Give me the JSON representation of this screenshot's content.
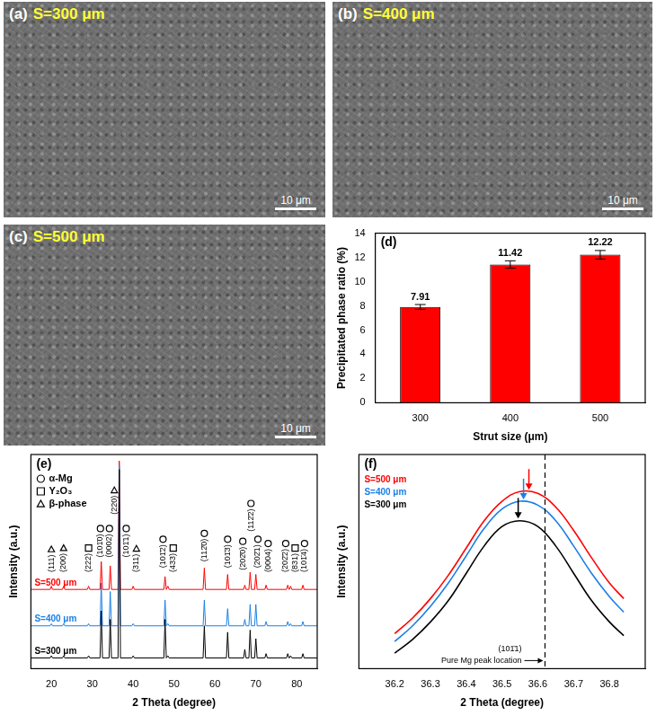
{
  "images": [
    {
      "label": "(a)",
      "title": "S=300 μm",
      "scale_bar": "10 μm"
    },
    {
      "label": "(b)",
      "title": "S=400 μm",
      "scale_bar": "10 μm"
    },
    {
      "label": "(c)",
      "title": "S=500 μm",
      "scale_bar": "10 μm"
    }
  ],
  "chart_data": [
    {
      "type": "bar",
      "label": "(d)",
      "categories": [
        "300",
        "400",
        "500"
      ],
      "values": [
        7.91,
        11.42,
        12.22
      ],
      "errors": [
        0.2,
        0.3,
        0.35
      ],
      "color": "#ff0000",
      "x_label": "Strut size (μm)",
      "y_label": "Precipitated phase ratio (%)",
      "ylim": [
        0,
        14
      ],
      "yticks": [
        0,
        2,
        4,
        6,
        8,
        10,
        12,
        14
      ],
      "grid": false,
      "data_labels": true
    },
    {
      "type": "line",
      "label": "(e)",
      "x": [
        15,
        19.7,
        20,
        20.3,
        22.7,
        23,
        23.3,
        28.8,
        29.1,
        29.4,
        31.9,
        32.2,
        32.5,
        34.1,
        34.4,
        34.7,
        36.3,
        36.6,
        36.9,
        39.7,
        40,
        40.3,
        47.5,
        47.8,
        48.1,
        48.2,
        48.5,
        48.8,
        57.1,
        57.4,
        57.7,
        62.8,
        63.1,
        63.4,
        67,
        67.3,
        67.6,
        68.3,
        68.6,
        68.9,
        69.7,
        70,
        70.3,
        72.2,
        72.5,
        72.8,
        77.5,
        77.8,
        78.1,
        78.2,
        78.5,
        78.8,
        81.2,
        81.5,
        81.8,
        85
      ],
      "series": [
        {
          "name": "S=300 μm",
          "color": "#000000",
          "values": [
            5,
            5,
            6,
            5,
            5,
            6,
            5,
            5,
            6,
            5,
            5,
            27,
            5,
            5,
            23,
            5,
            5,
            93,
            5,
            5,
            6,
            5,
            5,
            23,
            5,
            5,
            6,
            5,
            5,
            20,
            5,
            5,
            17,
            5,
            5,
            9,
            5,
            5,
            18,
            5,
            5,
            14,
            5,
            5,
            7,
            5,
            5,
            7,
            5,
            5,
            6,
            5,
            5,
            7,
            5,
            5
          ]
        },
        {
          "name": "S=400 μm",
          "color": "#1a7fe6",
          "values": [
            20,
            20,
            21,
            20,
            20,
            21,
            20,
            20,
            21,
            20,
            20,
            40,
            20,
            20,
            36,
            20,
            20,
            95,
            20,
            20,
            21,
            20,
            20,
            32,
            20,
            20,
            21,
            20,
            20,
            32,
            20,
            20,
            28,
            20,
            20,
            23,
            20,
            20,
            30,
            20,
            20,
            30,
            20,
            20,
            22,
            20,
            20,
            22,
            20,
            20,
            21,
            20,
            20,
            22,
            20,
            20
          ]
        },
        {
          "name": "S=500 μm",
          "color": "#ff0000",
          "values": [
            37,
            37,
            38.5,
            37,
            37,
            38.5,
            37,
            37,
            38.5,
            37,
            37,
            50,
            37,
            37,
            48,
            37,
            37,
            97,
            37,
            37,
            38.5,
            37,
            37,
            43,
            37,
            37,
            38.5,
            37,
            37,
            47,
            37,
            37,
            44,
            37,
            37,
            39,
            37,
            37,
            45,
            37,
            37,
            44,
            37,
            37,
            39,
            37,
            37,
            39,
            37,
            37,
            38.5,
            37,
            37,
            39,
            37,
            37
          ]
        }
      ],
      "xlim": [
        15,
        85
      ],
      "xticks": [
        20,
        30,
        40,
        50,
        60,
        70,
        80
      ],
      "ylim": [
        0,
        100
      ],
      "x_label": "2 Theta (degree)",
      "y_label": "Intensity (a.u.)",
      "tick_labels": "x",
      "grid": false,
      "phases": [
        {
          "marker": "circle",
          "name": "α-Mg"
        },
        {
          "marker": "square",
          "name": "Y₂O₃"
        },
        {
          "marker": "triangle",
          "name": "β-phase"
        }
      ],
      "annotations": [
        {
          "x": 20,
          "y": 45,
          "text": "(111)",
          "marker": "triangle"
        },
        {
          "x": 23,
          "y": 45,
          "text": "(200)",
          "marker": "triangle"
        },
        {
          "x": 29.1,
          "y": 45,
          "text": "(222)",
          "marker": "square"
        },
        {
          "x": 32,
          "y": 52,
          "text": "(101̄0)",
          "marker": "circle"
        },
        {
          "x": 34.2,
          "y": 52,
          "text": "(0002)",
          "marker": "circle"
        },
        {
          "x": 35.4,
          "y": 72,
          "text": "(220)",
          "marker": "triangle"
        },
        {
          "x": 38.3,
          "y": 52,
          "text": "(101̄1)",
          "marker": "circle"
        },
        {
          "x": 40.8,
          "y": 45,
          "text": "(311)",
          "marker": "triangle"
        },
        {
          "x": 47.3,
          "y": 47,
          "text": "(101̄2)",
          "marker": "circle"
        },
        {
          "x": 49.8,
          "y": 45,
          "text": "(433)",
          "marker": "square"
        },
        {
          "x": 57.4,
          "y": 50,
          "text": "(112̄0)",
          "marker": "circle"
        },
        {
          "x": 63.1,
          "y": 47,
          "text": "(101̄3)",
          "marker": "circle"
        },
        {
          "x": 66.8,
          "y": 46,
          "text": "(202̄0)",
          "marker": "circle"
        },
        {
          "x": 68.8,
          "y": 64,
          "text": "(112̄2)",
          "marker": "circle"
        },
        {
          "x": 70.5,
          "y": 47,
          "text": "(202̄1)",
          "marker": "circle"
        },
        {
          "x": 73,
          "y": 45,
          "text": "(0004)",
          "marker": "circle"
        },
        {
          "x": 77.3,
          "y": 45,
          "text": "(202̄2)",
          "marker": "circle"
        },
        {
          "x": 79.6,
          "y": 45,
          "text": "(831)",
          "marker": "square"
        },
        {
          "x": 81.9,
          "y": 45,
          "text": "(101̄4)",
          "marker": "circle"
        }
      ]
    },
    {
      "type": "line",
      "label": "(f)",
      "x": [
        36.2,
        36.25,
        36.3,
        36.35,
        36.4,
        36.45,
        36.5,
        36.55,
        36.6,
        36.65,
        36.7,
        36.75,
        36.8,
        36.84
      ],
      "series": [
        {
          "name": "S=300 μm",
          "color": "#000000",
          "peak": 36.545,
          "values": [
            8,
            15,
            24,
            35,
            49,
            63,
            73,
            76,
            73,
            63,
            49,
            35,
            24,
            17
          ]
        },
        {
          "name": "S=400 μm",
          "color": "#1a7fe6",
          "peak": 36.56,
          "values": [
            14,
            22,
            32,
            44,
            58,
            72,
            82,
            86,
            84,
            76,
            63,
            49,
            37,
            29
          ]
        },
        {
          "name": "S=500 μm",
          "color": "#ff0000",
          "peak": 36.575,
          "values": [
            18,
            26,
            36,
            48,
            62,
            76,
            86,
            91,
            90,
            83,
            71,
            57,
            44,
            36
          ]
        }
      ],
      "xlim": [
        36.1,
        36.9
      ],
      "xticks": [
        36.2,
        36.3,
        36.4,
        36.5,
        36.6,
        36.7,
        36.8
      ],
      "ylim": [
        0,
        110
      ],
      "x_label": "2 Theta (degree)",
      "y_label": "Intensity (a.u.)",
      "tick_labels": "x",
      "grid": false,
      "reference_line": {
        "x": 36.62,
        "label": "Pure Mg peak location",
        "annotation": "(101̄1)"
      }
    }
  ]
}
